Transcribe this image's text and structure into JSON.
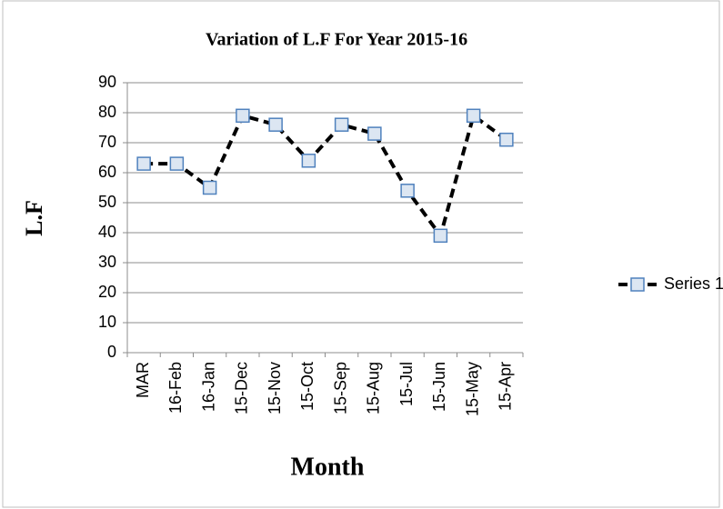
{
  "chart_data": {
    "type": "line",
    "title": "Variation of L.F For Year 2015-16",
    "x_label": "Month",
    "y_label": "L.F",
    "categories": [
      "MAR",
      "16-Feb",
      "16-Jan",
      "15-Dec",
      "15-Nov",
      "15-Oct",
      "15-Sep",
      "15-Aug",
      "15-Jul",
      "15-Jun",
      "15-May",
      "15-Apr"
    ],
    "series": [
      {
        "name": "Series 1",
        "color": "#000000",
        "marker_color": "#4f81bd",
        "values": [
          63,
          63,
          55,
          79,
          76,
          64,
          76,
          73,
          54,
          39,
          79,
          71
        ]
      }
    ],
    "ylim": [
      0,
      90
    ],
    "yticks": [
      0,
      10,
      20,
      30,
      40,
      50,
      60,
      70,
      80,
      90
    ],
    "grid": true,
    "legend": "right"
  }
}
